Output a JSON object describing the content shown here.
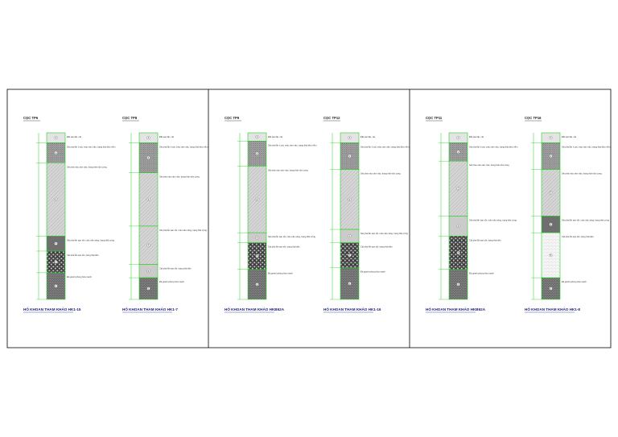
{
  "colors": {
    "frame": "#000000",
    "outline": "#20d020",
    "text": "#333333",
    "footer": "#1c1c80"
  },
  "panels": [
    {
      "logs": [
        {
          "header": "CỌC TP6",
          "footer": "HỐ KHOAN THAM KHẢO HK1-15",
          "layers": [
            {
              "num": "1",
              "pattern": "fill",
              "t0": 0,
              "t1": 0.06,
              "desc": "Đất san lấp, cát"
            },
            {
              "num": "2",
              "pattern": "dots",
              "t0": 0.06,
              "t1": 0.18,
              "desc": "Sét pha lẫn ít cát, màu xám nâu, trạng thái dẻo mềm"
            },
            {
              "num": "3",
              "pattern": "hatch",
              "t0": 0.18,
              "t1": 0.62,
              "desc": "Sét pha màu xám nâu, trạng thái nửa cứng"
            },
            {
              "num": "4",
              "pattern": "dark",
              "t0": 0.62,
              "t1": 0.71,
              "desc": "Sét pha lẫn sạn sỏi, màu nâu vàng, trạng thái cứng"
            },
            {
              "num": "5",
              "pattern": "gravel",
              "t0": 0.71,
              "t1": 0.84,
              "desc": "Cát pha lẫn sạn sỏi, trạng thái dẻo"
            },
            {
              "num": "6",
              "pattern": "speck",
              "t0": 0.84,
              "t1": 1.0,
              "desc": "Đá granit phong hóa mạnh"
            }
          ]
        },
        {
          "header": "CỌC TP8",
          "footer": "HỐ KHOAN THAM KHẢO HK1-7",
          "layers": [
            {
              "num": "1",
              "pattern": "fill",
              "t0": 0,
              "t1": 0.06,
              "desc": "Đất san lấp, cát"
            },
            {
              "num": "2",
              "pattern": "dots",
              "t0": 0.06,
              "t1": 0.24,
              "desc": "Sét pha lẫn ít cát, màu xám nâu, trạng thái dẻo mềm"
            },
            {
              "num": "3",
              "pattern": "hatch",
              "t0": 0.24,
              "t1": 0.56,
              "desc": "Sét pha màu xám nâu, trạng thái nửa cứng"
            },
            {
              "num": "4",
              "pattern": "hatch",
              "t0": 0.56,
              "t1": 0.79,
              "desc": "Sét pha lẫn sạn sỏi, màu nâu vàng, trạng thái cứng"
            },
            {
              "num": "5",
              "pattern": "light",
              "t0": 0.79,
              "t1": 0.87,
              "desc": "Cát pha lẫn sạn sỏi, trạng thái dẻo"
            },
            {
              "num": "6",
              "pattern": "speck",
              "t0": 0.87,
              "t1": 1.0,
              "desc": "Đá granit phong hóa mạnh"
            }
          ]
        }
      ]
    },
    {
      "logs": [
        {
          "header": "CỌC TP9",
          "footer": "HỐ KHOAN THAM KHẢO HKB62A",
          "layers": [
            {
              "num": "1",
              "pattern": "fill",
              "t0": 0,
              "t1": 0.05,
              "desc": "Đất san lấp, cát"
            },
            {
              "num": "2",
              "pattern": "dots",
              "t0": 0.05,
              "t1": 0.2,
              "desc": "Sét pha lẫn ít cát, màu xám nâu, trạng thái dẻo mềm"
            },
            {
              "num": "3",
              "pattern": "hatch",
              "t0": 0.2,
              "t1": 0.6,
              "desc": "Sét pha màu xám nâu, trạng thái nửa cứng"
            },
            {
              "num": "4",
              "pattern": "light",
              "t0": 0.6,
              "t1": 0.66,
              "desc": "Sét pha lẫn sạn sỏi, màu nâu vàng, trạng thái cứng"
            },
            {
              "num": "5",
              "pattern": "gravel",
              "t0": 0.66,
              "t1": 0.82,
              "desc": "Cát pha lẫn sạn sỏi, trạng thái dẻo"
            },
            {
              "num": "6",
              "pattern": "speck",
              "t0": 0.82,
              "t1": 1.0,
              "desc": "Đá granit phong hóa mạnh"
            }
          ]
        },
        {
          "header": "CỌC TP12",
          "footer": "HỐ KHOAN THAM KHẢO HK1-16",
          "layers": [
            {
              "num": "1",
              "pattern": "fill",
              "t0": 0,
              "t1": 0.06,
              "desc": "Đất san lấp, cát"
            },
            {
              "num": "2",
              "pattern": "dots",
              "t0": 0.06,
              "t1": 0.22,
              "desc": "Sét pha lẫn ít cát, màu xám nâu, trạng thái dẻo mềm"
            },
            {
              "num": "3",
              "pattern": "hatch",
              "t0": 0.22,
              "t1": 0.58,
              "desc": "Sét pha màu xám nâu, trạng thái nửa cứng"
            },
            {
              "num": "4",
              "pattern": "light",
              "t0": 0.58,
              "t1": 0.66,
              "desc": "Sét pha lẫn sạn sỏi, màu nâu vàng, trạng thái cứng"
            },
            {
              "num": "5",
              "pattern": "gravel",
              "t0": 0.66,
              "t1": 0.81,
              "desc": "Cát pha lẫn sạn sỏi, trạng thái dẻo"
            },
            {
              "num": "6",
              "pattern": "speck",
              "t0": 0.81,
              "t1": 1.0,
              "desc": "Đá granit phong hóa mạnh"
            }
          ]
        }
      ]
    },
    {
      "logs": [
        {
          "header": "CỌC TP11",
          "footer": "HỐ KHOAN THAM KHẢO HKB62A",
          "layers": [
            {
              "num": "1",
              "pattern": "fill",
              "t0": 0,
              "t1": 0.06,
              "desc": "Đất san lấp, cát"
            },
            {
              "num": "2",
              "pattern": "dots",
              "t0": 0.06,
              "t1": 0.17,
              "desc": "Sét pha lẫn ít cát, màu xám nâu, trạng thái dẻo mềm"
            },
            {
              "num": "3",
              "pattern": "hatch",
              "t0": 0.17,
              "t1": 0.5,
              "desc": "Sét pha màu xám nâu, trạng thái nửa cứng"
            },
            {
              "num": "4",
              "pattern": "light",
              "t0": 0.5,
              "t1": 0.62,
              "desc": "Sét pha lẫn sạn sỏi, màu nâu vàng, trạng thái cứng"
            },
            {
              "num": "5",
              "pattern": "gravel",
              "t0": 0.62,
              "t1": 0.82,
              "desc": "Cát pha lẫn sạn sỏi, trạng thái dẻo"
            },
            {
              "num": "6",
              "pattern": "speck",
              "t0": 0.82,
              "t1": 1.0,
              "desc": "Đá granit phong hóa mạnh"
            }
          ]
        },
        {
          "header": "CỌC TP16",
          "footer": "HỐ KHOAN THAM KHẢO HK1-8",
          "layers": [
            {
              "num": "1",
              "pattern": "fill",
              "t0": 0,
              "t1": 0.06,
              "desc": "Đất san lấp, cát"
            },
            {
              "num": "2",
              "pattern": "dots",
              "t0": 0.06,
              "t1": 0.22,
              "desc": "Sét pha lẫn ít cát, màu xám nâu, trạng thái dẻo mềm"
            },
            {
              "num": "3",
              "pattern": "hatch",
              "t0": 0.22,
              "t1": 0.5,
              "desc": "Sét pha màu xám nâu, trạng thái nửa cứng"
            },
            {
              "num": "4",
              "pattern": "dark",
              "t0": 0.5,
              "t1": 0.6,
              "desc": "Sét pha lẫn sạn sỏi, màu nâu vàng, trạng thái cứng"
            },
            {
              "num": "5",
              "pattern": "white",
              "t0": 0.6,
              "t1": 0.87,
              "desc": "Cát pha lẫn sạn sỏi, trạng thái dẻo"
            },
            {
              "num": "6",
              "pattern": "speck",
              "t0": 0.87,
              "t1": 1.0,
              "desc": "Đá granit phong hóa mạnh"
            }
          ]
        }
      ]
    }
  ]
}
